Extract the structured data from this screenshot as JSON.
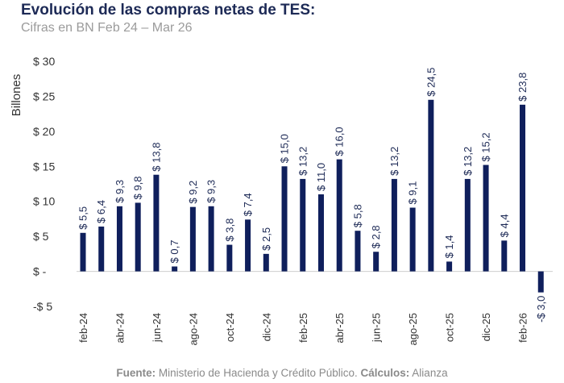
{
  "header": {
    "title": "Evolución de las compras netas de TES:",
    "subtitle": "Cifras en BN Feb 24 – Mar 26"
  },
  "footer": {
    "source_label": "Fuente:",
    "source_text": " Ministerio de Hacienda y Crédito Público. ",
    "calc_label": "Cálculos:",
    "calc_text": " Alianza"
  },
  "colors": {
    "bar": "#0f1f5c",
    "label": "#1d2a56",
    "axis": "#333333",
    "baseline": "#cfcfcf"
  },
  "chart_data": {
    "type": "bar",
    "ylabel": "Billones",
    "ylim": [
      -5,
      30
    ],
    "y_ticks": [
      {
        "value": 30,
        "label": "$ 30"
      },
      {
        "value": 25,
        "label": "$ 25"
      },
      {
        "value": 20,
        "label": "$ 20"
      },
      {
        "value": 15,
        "label": "$ 15"
      },
      {
        "value": 10,
        "label": "$ 10"
      },
      {
        "value": 5,
        "label": "$ 5"
      },
      {
        "value": 0,
        "label": "$ -"
      },
      {
        "value": -5,
        "label": "-$ 5"
      }
    ],
    "x_tick_labels": [
      "feb-24",
      "abr-24",
      "jun-24",
      "ago-24",
      "oct-24",
      "dic-24",
      "feb-25",
      "abr-25",
      "jun-25",
      "ago-25",
      "oct-25",
      "dic-25",
      "feb-26"
    ],
    "grid": false,
    "legend": "none",
    "values": [
      5.5,
      6.4,
      9.3,
      9.8,
      13.8,
      0.7,
      9.2,
      9.3,
      3.8,
      7.4,
      2.5,
      15.0,
      13.2,
      11.0,
      16.0,
      5.8,
      2.8,
      13.2,
      9.1,
      24.5,
      1.4,
      13.2,
      15.2,
      4.4,
      23.8,
      -3.0
    ],
    "data_labels": [
      "$ 5,5",
      "$ 6,4",
      "$ 9,3",
      "$ 9,8",
      "$ 13,8",
      "$ 0,7",
      "$ 9,2",
      "$ 9,3",
      "$ 3,8",
      "$ 7,4",
      "$ 2,5",
      "$ 15,0",
      "$ 13,2",
      "$ 11,0",
      "$ 16,0",
      "$ 5,8",
      "$ 2,8",
      "$ 13,2",
      "$ 9,1",
      "$ 24,5",
      "$ 1,4",
      "$ 13,2",
      "$ 15,2",
      "$ 4,4",
      "$ 23,8",
      "-$ 3,0"
    ]
  }
}
